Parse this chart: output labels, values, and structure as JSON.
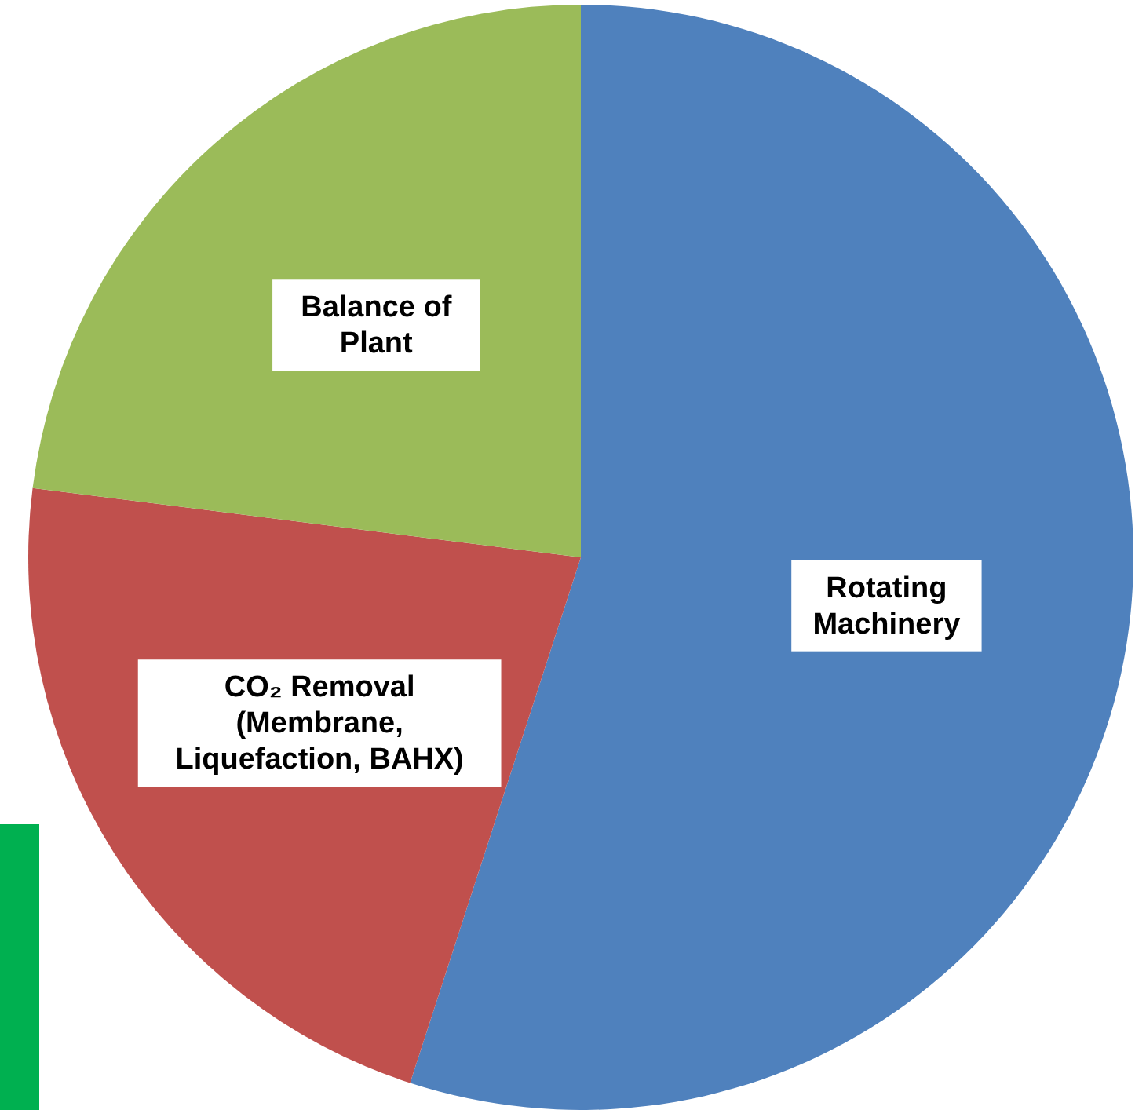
{
  "chart_data": {
    "type": "pie",
    "categories": [
      "Rotating\nMachinery",
      "CO₂ Removal\n(Membrane,\nLiquefaction, BAHX)",
      "Balance of\nPlant"
    ],
    "values": [
      55,
      22,
      23
    ],
    "colors": [
      "#4f81bd",
      "#c0504d",
      "#9bbb59"
    ]
  }
}
